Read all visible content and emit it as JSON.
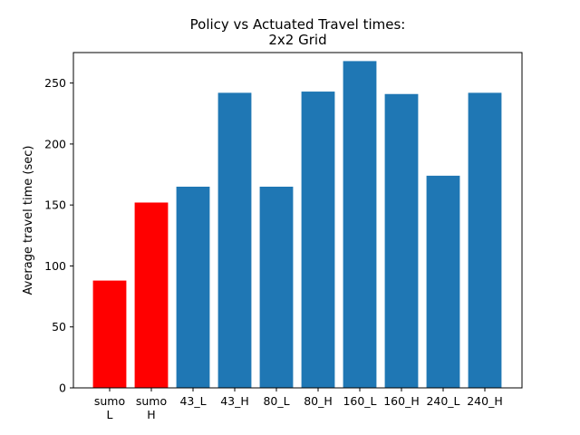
{
  "chart_data": {
    "type": "bar",
    "title_lines": [
      "Policy vs Actuated Travel times:",
      "2x2 Grid"
    ],
    "xlabel": "",
    "ylabel": "Average travel time (sec)",
    "ylim": [
      0,
      275
    ],
    "yticks": [
      0,
      50,
      100,
      150,
      200,
      250
    ],
    "grid": false,
    "categories": [
      [
        "sumo",
        "L"
      ],
      [
        "sumo",
        "H"
      ],
      [
        "43_L"
      ],
      [
        "43_H"
      ],
      [
        "80_L"
      ],
      [
        "80_H"
      ],
      [
        "160_L"
      ],
      [
        "160_H"
      ],
      [
        "240_L"
      ],
      [
        "240_H"
      ]
    ],
    "values": [
      88,
      152,
      165,
      242,
      165,
      243,
      268,
      241,
      174,
      242
    ],
    "colors": [
      "#ff0000",
      "#ff0000",
      "#1f77b4",
      "#1f77b4",
      "#1f77b4",
      "#1f77b4",
      "#1f77b4",
      "#1f77b4",
      "#1f77b4",
      "#1f77b4"
    ]
  }
}
